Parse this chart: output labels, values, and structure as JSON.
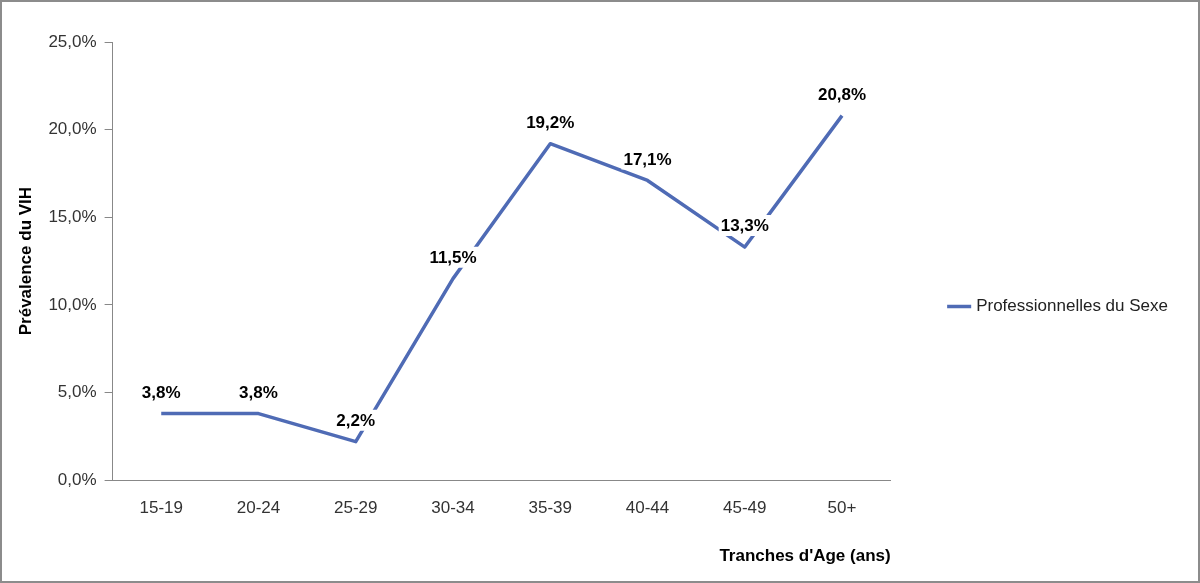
{
  "chart_data": {
    "type": "line",
    "ylabel": "Prévalence du VIH",
    "xlabel": "Tranches d'Age (ans)",
    "categories": [
      "15-19",
      "20-24",
      "25-29",
      "30-34",
      "35-39",
      "40-44",
      "45-49",
      "50+"
    ],
    "series": [
      {
        "name": "Professionnelles du Sexe",
        "color": "#4f6bb5",
        "values": [
          3.8,
          3.8,
          2.2,
          11.5,
          19.2,
          17.1,
          13.3,
          20.8
        ],
        "value_labels": [
          "3,8%",
          "3,8%",
          "2,2%",
          "11,5%",
          "19,2%",
          "17,1%",
          "13,3%",
          "20,8%"
        ]
      }
    ],
    "ylim": [
      0,
      25
    ],
    "yticks": [
      {
        "value": 0,
        "label": "0,0%"
      },
      {
        "value": 5,
        "label": "5,0%"
      },
      {
        "value": 10,
        "label": "10,0%"
      },
      {
        "value": 15,
        "label": "15,0%"
      },
      {
        "value": 20,
        "label": "20,0%"
      },
      {
        "value": 25,
        "label": "25,0%"
      }
    ],
    "grid": false,
    "legend": "right",
    "marker": "none",
    "line_style": "solid"
  }
}
